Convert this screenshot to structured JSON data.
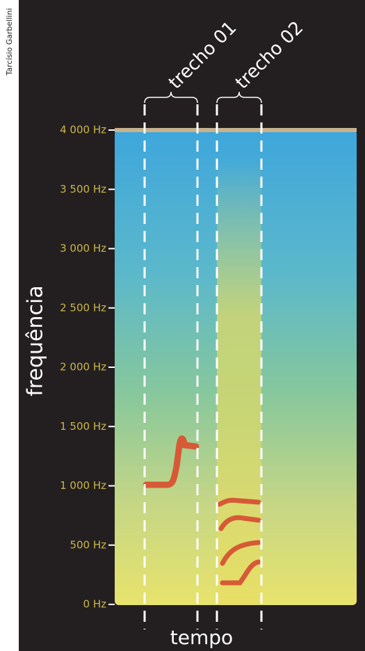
{
  "chart_data": {
    "type": "spectrogram",
    "credit": "Tarcísio Garbellini",
    "x_label": "tempo",
    "y_label": "frequência",
    "annotations": [
      "trecho 01",
      "trecho 02"
    ],
    "ylim": [
      0,
      4000
    ],
    "yticks": [
      {
        "value": 0,
        "label": "0 Hz"
      },
      {
        "value": 500,
        "label": "500 Hz"
      },
      {
        "value": 1000,
        "label": "1 000 Hz"
      },
      {
        "value": 1500,
        "label": "1 500 Hz"
      },
      {
        "value": 2000,
        "label": "2 000 Hz"
      },
      {
        "value": 2500,
        "label": "2 500 Hz"
      },
      {
        "value": 3000,
        "label": "3 000 Hz"
      },
      {
        "value": 3500,
        "label": "3 500 Hz"
      },
      {
        "value": 4000,
        "label": "4 000 Hz"
      }
    ]
  }
}
